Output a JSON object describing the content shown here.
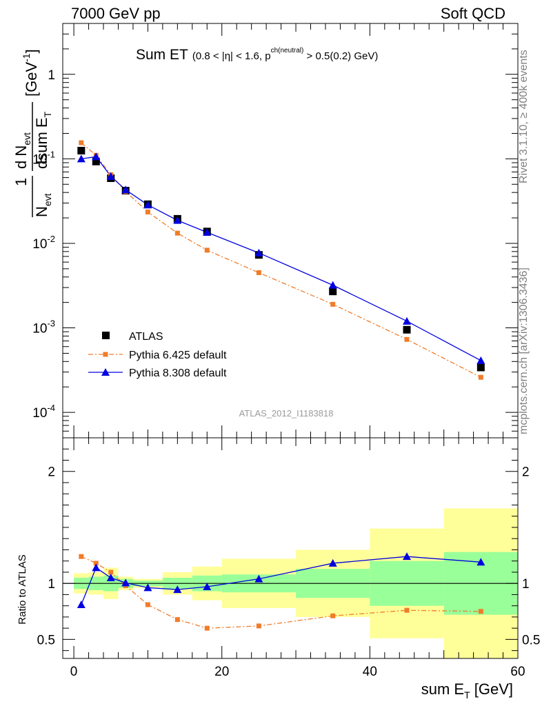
{
  "header": {
    "left": "7000 GeV pp",
    "right": "Soft QCD"
  },
  "side_labels": {
    "rivet": "Rivet 3.1.10, ≥ 400k events",
    "mcplots": "mcplots.cern.ch [arXiv:1306.3436]"
  },
  "chart_data": [
    {
      "type": "scatter",
      "panel": "main",
      "title": "Sum ET",
      "title_detail": "(0.8 < |η| < 1.6, p",
      "title_sup": "ch(neutral)",
      "title_tail": " > 0.5(0.2) GeV)",
      "ylabel_frac_num": "d N",
      "ylabel_frac_num_sub": "evt",
      "ylabel_frac_den": "dsum E",
      "ylabel_frac_den_sub": "T",
      "ylabel_one": "1",
      "ylabel_n": "N",
      "ylabel_n_sub": "evt",
      "ylabel_unit": "[GeV",
      "ylabel_unit_sup": "-1",
      "ylabel_unit_end": "]",
      "yscale": "log",
      "ylim": [
        5e-05,
        4
      ],
      "xlim": [
        -1.5,
        60
      ],
      "y_ticks": [
        {
          "value": 1,
          "label": "1"
        },
        {
          "value": 0.1,
          "base": "10",
          "exp": "-1"
        },
        {
          "value": 0.01,
          "base": "10",
          "exp": "-2"
        },
        {
          "value": 0.001,
          "base": "10",
          "exp": "-3"
        },
        {
          "value": 0.0001,
          "base": "10",
          "exp": "-4"
        }
      ],
      "watermark": "ATLAS_2012_I1183818",
      "legend_position": "lower-left",
      "series": [
        {
          "name": "ATLAS",
          "marker": "square",
          "color": "#000000",
          "x": [
            1,
            3,
            5,
            7,
            10,
            14,
            18,
            25,
            35,
            45,
            55
          ],
          "y": [
            0.125,
            0.093,
            0.059,
            0.042,
            0.029,
            0.0195,
            0.0138,
            0.0073,
            0.0027,
            0.00095,
            0.00034
          ]
        },
        {
          "name": "Pythia 6.425 default",
          "marker": "square-small",
          "line": "dashdot",
          "color": "#f07c2a",
          "x": [
            1,
            3,
            5,
            7,
            10,
            14,
            18,
            25,
            35,
            45,
            55
          ],
          "y": [
            0.155,
            0.11,
            0.065,
            0.041,
            0.0235,
            0.0132,
            0.0083,
            0.0045,
            0.0019,
            0.00073,
            0.00026
          ]
        },
        {
          "name": "Pythia 8.308 default",
          "marker": "triangle",
          "line": "solid",
          "color": "#0000e0",
          "x": [
            1,
            3,
            5,
            7,
            10,
            14,
            18,
            25,
            35,
            45,
            55
          ],
          "y": [
            0.1,
            0.106,
            0.062,
            0.043,
            0.0285,
            0.0187,
            0.0135,
            0.0077,
            0.0032,
            0.0012,
            0.00041
          ]
        }
      ]
    },
    {
      "type": "line",
      "panel": "ratio",
      "ylabel": "Ratio to ATLAS",
      "xlabel": "sum E",
      "xlabel_sub": "T",
      "xlabel_unit": " [GeV]",
      "xlim": [
        -1.5,
        60
      ],
      "ylim": [
        0.33,
        2.3
      ],
      "x_ticks": [
        0,
        20,
        40,
        60
      ],
      "y_ticks": [
        0.5,
        1,
        2
      ],
      "reference_line": 1,
      "bands": [
        {
          "x0": 0,
          "x1": 2,
          "inner": [
            0.95,
            1.05
          ],
          "outer": [
            0.91,
            1.09
          ]
        },
        {
          "x0": 2,
          "x1": 4,
          "inner": [
            0.94,
            1.06
          ],
          "outer": [
            0.9,
            1.1
          ]
        },
        {
          "x0": 4,
          "x1": 6,
          "inner": [
            0.93,
            1.07
          ],
          "outer": [
            0.86,
            1.14
          ]
        },
        {
          "x0": 6,
          "x1": 8,
          "inner": [
            0.96,
            1.04
          ],
          "outer": [
            0.94,
            1.06
          ]
        },
        {
          "x0": 8,
          "x1": 12,
          "inner": [
            0.975,
            1.025
          ],
          "outer": [
            0.96,
            1.04
          ]
        },
        {
          "x0": 12,
          "x1": 16,
          "inner": [
            0.95,
            1.05
          ],
          "outer": [
            0.9,
            1.1
          ]
        },
        {
          "x0": 16,
          "x1": 20,
          "inner": [
            0.93,
            1.07
          ],
          "outer": [
            0.85,
            1.15
          ]
        },
        {
          "x0": 20,
          "x1": 30,
          "inner": [
            0.92,
            1.08
          ],
          "outer": [
            0.78,
            1.22
          ]
        },
        {
          "x0": 30,
          "x1": 40,
          "inner": [
            0.87,
            1.13
          ],
          "outer": [
            0.7,
            1.3
          ]
        },
        {
          "x0": 40,
          "x1": 50,
          "inner": [
            0.8,
            1.2
          ],
          "outer": [
            0.51,
            1.49
          ]
        },
        {
          "x0": 50,
          "x1": 60,
          "inner": [
            0.72,
            1.28
          ],
          "outer": [
            0.33,
            1.67
          ]
        }
      ],
      "series": [
        {
          "name": "Pythia 6.425 default",
          "marker": "square-small",
          "line": "dashdot",
          "color": "#f07c2a",
          "x": [
            1,
            3,
            5,
            7,
            10,
            14,
            18,
            25,
            35,
            45,
            55
          ],
          "y": [
            1.24,
            1.18,
            1.1,
            0.98,
            0.81,
            0.677,
            0.6,
            0.62,
            0.71,
            0.76,
            0.75
          ]
        },
        {
          "name": "Pythia 8.308 default",
          "marker": "triangle",
          "line": "solid",
          "color": "#0000e0",
          "x": [
            1,
            3,
            5,
            7,
            10,
            14,
            18,
            25,
            35,
            45,
            55
          ],
          "y": [
            0.81,
            1.14,
            1.05,
            1.005,
            0.962,
            0.945,
            0.97,
            1.04,
            1.18,
            1.24,
            1.19
          ]
        }
      ]
    }
  ]
}
